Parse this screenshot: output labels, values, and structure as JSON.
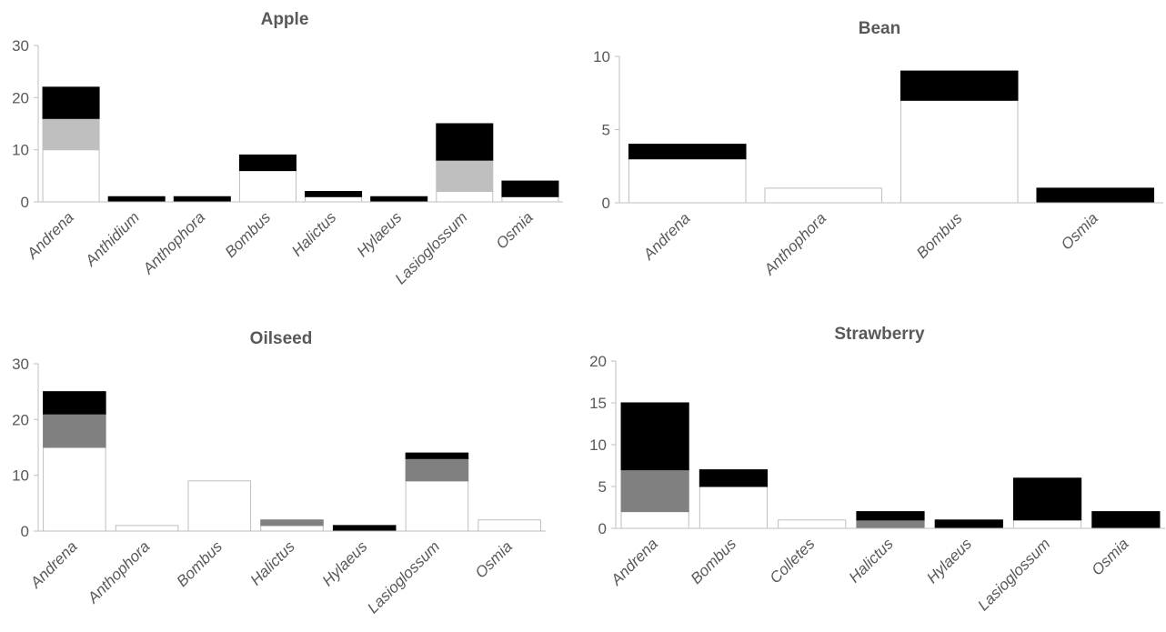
{
  "chart_data": [
    {
      "type": "bar",
      "stacked": true,
      "title": "Apple",
      "categories": [
        "Andrena",
        "Anthidium",
        "Anthophora",
        "Bombus",
        "Halictus",
        "Hylaeus",
        "Lasioglossum",
        "Osmia"
      ],
      "series": [
        {
          "color": "#ffffff",
          "values": [
            10,
            0,
            0,
            6,
            1,
            0,
            2,
            1
          ]
        },
        {
          "color": "#bfbfbf",
          "values": [
            6,
            0,
            0,
            0,
            0,
            0,
            6,
            0
          ]
        },
        {
          "color": "#000000",
          "values": [
            6,
            1,
            1,
            3,
            1,
            1,
            7,
            3
          ]
        }
      ],
      "ylim": [
        0,
        30
      ],
      "yticks": [
        "0",
        "10",
        "20",
        "30"
      ],
      "grid": false,
      "legend": "none"
    },
    {
      "type": "bar",
      "stacked": true,
      "title": "Bean",
      "categories": [
        "Andrena",
        "Anthophora",
        "Bombus",
        "Osmia"
      ],
      "series": [
        {
          "color": "#ffffff",
          "values": [
            3,
            1,
            7,
            0
          ]
        },
        {
          "color": "#000000",
          "values": [
            1,
            0,
            2,
            1
          ]
        }
      ],
      "ylim": [
        0,
        10
      ],
      "yticks": [
        "0",
        "5",
        "10"
      ],
      "grid": false,
      "legend": "none"
    },
    {
      "type": "bar",
      "stacked": true,
      "title": "Oilseed",
      "categories": [
        "Andrena",
        "Anthophora",
        "Bombus",
        "Halictus",
        "Hylaeus",
        "Lasioglossum",
        "Osmia"
      ],
      "series": [
        {
          "color": "#ffffff",
          "values": [
            15,
            1,
            9,
            1,
            0,
            9,
            2
          ]
        },
        {
          "color": "#808080",
          "values": [
            6,
            0,
            0,
            1,
            0,
            4,
            0
          ]
        },
        {
          "color": "#000000",
          "values": [
            4,
            0,
            0,
            0,
            1,
            1,
            0
          ]
        }
      ],
      "ylim": [
        0,
        30
      ],
      "yticks": [
        "0",
        "10",
        "20",
        "30"
      ],
      "grid": false,
      "legend": "none"
    },
    {
      "type": "bar",
      "stacked": true,
      "title": "Strawberry",
      "categories": [
        "Andrena",
        "Bombus",
        "Colletes",
        "Halictus",
        "Hylaeus",
        "Lasioglossum",
        "Osmia"
      ],
      "series": [
        {
          "color": "#ffffff",
          "values": [
            2,
            5,
            1,
            0,
            0,
            1,
            0
          ]
        },
        {
          "color": "#808080",
          "values": [
            5,
            0,
            0,
            1,
            0,
            0,
            0
          ]
        },
        {
          "color": "#000000",
          "values": [
            8,
            2,
            0,
            1,
            1,
            5,
            2
          ]
        }
      ],
      "ylim": [
        0,
        20
      ],
      "yticks": [
        "0",
        "5",
        "10",
        "15",
        "20"
      ],
      "grid": false,
      "legend": "none"
    }
  ]
}
